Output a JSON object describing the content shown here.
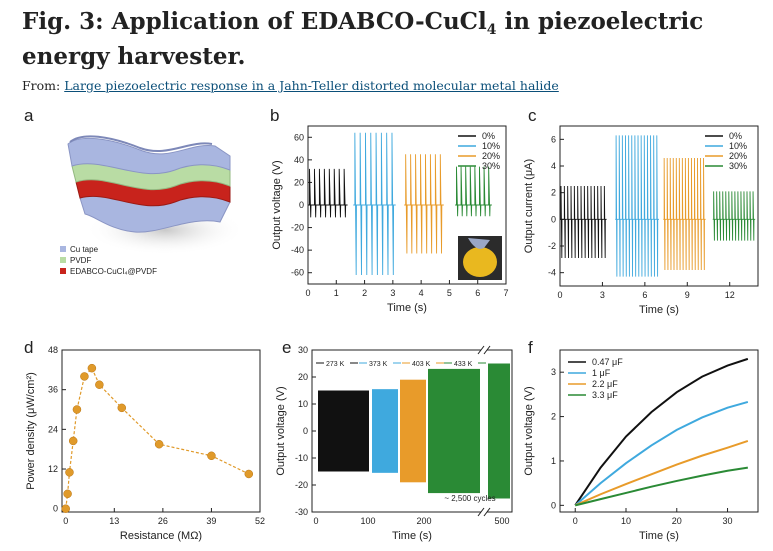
{
  "header": {
    "title_main": "Fig. 3: Application of EDABCO-CuCl",
    "title_sub": "4",
    "title_rest": " in piezoelectric energy harvester.",
    "from_label": "From: ",
    "source_link": "Large piezoelectric response in a Jahn-Teller distorted molecular metal halide"
  },
  "panel_labels": [
    "a",
    "b",
    "c",
    "d",
    "e",
    "f"
  ],
  "panel_a": {
    "legend": [
      {
        "label": "Cu tape",
        "color": "#a9b6e0"
      },
      {
        "label": "PVDF",
        "color": "#b9dca4"
      },
      {
        "label": "EDABCO-CuCl₄@PVDF",
        "color": "#c8231c"
      }
    ]
  },
  "colors": {
    "s0": "#111111",
    "s10": "#3fa9de",
    "s20": "#e89b2a",
    "s30": "#2a8a35",
    "d": "#e09a2a"
  },
  "chart_data": [
    {
      "panel": "b",
      "type": "line",
      "xlabel": "Time (s)",
      "ylabel": "Output voltage (V)",
      "xlim": [
        0,
        7
      ],
      "ylim": [
        -70,
        70
      ],
      "xticks": [
        0,
        1,
        2,
        3,
        4,
        5,
        6,
        7
      ],
      "yticks": [
        -60,
        -40,
        -20,
        0,
        20,
        40,
        60
      ],
      "series": [
        {
          "name": "0%",
          "x_range": [
            0.0,
            1.4
          ],
          "peak": 32,
          "trough": -11,
          "cycles": 8
        },
        {
          "name": "10%",
          "x_range": [
            1.6,
            3.1
          ],
          "peak": 64,
          "trough": -62,
          "cycles": 8
        },
        {
          "name": "20%",
          "x_range": [
            3.4,
            4.8
          ],
          "peak": 45,
          "trough": -43,
          "cycles": 8
        },
        {
          "name": "30%",
          "x_range": [
            5.2,
            6.5
          ],
          "peak": 34,
          "trough": -10,
          "cycles": 8
        }
      ]
    },
    {
      "panel": "c",
      "type": "line",
      "xlabel": "Time (s)",
      "ylabel": "Output current (μA)",
      "xlim": [
        0,
        14
      ],
      "ylim": [
        -5,
        7
      ],
      "xticks": [
        0,
        3,
        6,
        9,
        12
      ],
      "yticks": [
        -4,
        -2,
        0,
        2,
        4,
        6
      ],
      "series": [
        {
          "name": "0%",
          "x_range": [
            0.0,
            3.3
          ],
          "peak": 2.5,
          "trough": -2.9,
          "cycles": 14
        },
        {
          "name": "10%",
          "x_range": [
            3.9,
            7.0
          ],
          "peak": 6.3,
          "trough": -4.3,
          "cycles": 14
        },
        {
          "name": "20%",
          "x_range": [
            7.3,
            10.3
          ],
          "peak": 4.6,
          "trough": -3.8,
          "cycles": 14
        },
        {
          "name": "30%",
          "x_range": [
            10.8,
            13.8
          ],
          "peak": 2.1,
          "trough": -1.6,
          "cycles": 14
        }
      ]
    },
    {
      "panel": "d",
      "type": "scatter",
      "xlabel": "Resistance (MΩ)",
      "ylabel": "Power density (μW/cm²)",
      "xlim": [
        -1,
        52
      ],
      "ylim": [
        -1,
        48
      ],
      "xticks": [
        0,
        13,
        26,
        39,
        52
      ],
      "yticks": [
        0,
        12,
        24,
        36,
        48
      ],
      "x": [
        0,
        0.5,
        1,
        2,
        3,
        5,
        7,
        9,
        15,
        25,
        39,
        49
      ],
      "y": [
        0,
        4.5,
        11,
        20.5,
        30,
        40,
        42.5,
        37.5,
        30.5,
        19.5,
        16,
        10.5
      ]
    },
    {
      "panel": "e",
      "type": "line",
      "xlabel": "Time (s)",
      "ylabel": "Output voltage (V)",
      "ylim": [
        -30,
        30
      ],
      "yticks": [
        -30,
        -20,
        -10,
        0,
        10,
        20,
        30
      ],
      "xticks": [
        "0",
        "100",
        "200",
        "500"
      ],
      "annotation": "~ 2,500 cycles",
      "series": [
        {
          "name": "273 K",
          "amplitude": 15
        },
        {
          "name": "373 K",
          "amplitude": 15.5
        },
        {
          "name": "403 K",
          "amplitude": 19
        },
        {
          "name": "433 K",
          "amplitude": 23
        }
      ]
    },
    {
      "panel": "f",
      "type": "line",
      "xlabel": "Time (s)",
      "ylabel": "Output voltage (V)",
      "xlim": [
        -3,
        36
      ],
      "ylim": [
        -0.15,
        3.5
      ],
      "xticks": [
        0,
        10,
        20,
        30
      ],
      "yticks": [
        0,
        1,
        2,
        3
      ],
      "series": [
        {
          "name": "0.47 μF",
          "x": [
            0,
            5,
            10,
            15,
            20,
            25,
            30,
            34
          ],
          "y": [
            0,
            0.85,
            1.55,
            2.1,
            2.55,
            2.9,
            3.15,
            3.3
          ]
        },
        {
          "name": "1 μF",
          "x": [
            0,
            5,
            10,
            15,
            20,
            25,
            30,
            34
          ],
          "y": [
            0,
            0.5,
            0.95,
            1.35,
            1.7,
            1.98,
            2.2,
            2.33
          ]
        },
        {
          "name": "2.2 μF",
          "x": [
            0,
            5,
            10,
            15,
            20,
            25,
            30,
            34
          ],
          "y": [
            0,
            0.25,
            0.48,
            0.7,
            0.92,
            1.12,
            1.3,
            1.45
          ]
        },
        {
          "name": "3.3 μF",
          "x": [
            0,
            5,
            10,
            15,
            20,
            25,
            30,
            34
          ],
          "y": [
            0,
            0.14,
            0.28,
            0.42,
            0.55,
            0.67,
            0.78,
            0.85
          ]
        }
      ]
    }
  ]
}
